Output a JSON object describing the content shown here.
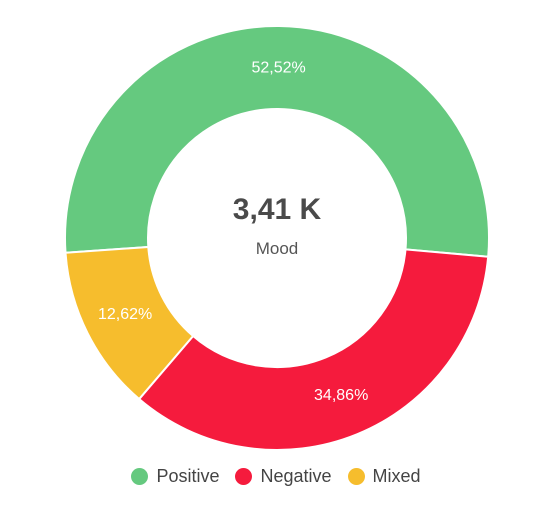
{
  "chart_data": {
    "type": "pie",
    "categories": [
      "Positive",
      "Negative",
      "Mixed"
    ],
    "values": [
      52.52,
      34.86,
      12.62
    ],
    "value_labels": [
      "52,52%",
      "34,86%",
      "12,62%"
    ],
    "colors": [
      "#65c97f",
      "#f51b3d",
      "#f6bd2d"
    ],
    "donut": true,
    "center": {
      "total": "3,41 K",
      "label": "Mood"
    },
    "legend_position": "bottom"
  }
}
